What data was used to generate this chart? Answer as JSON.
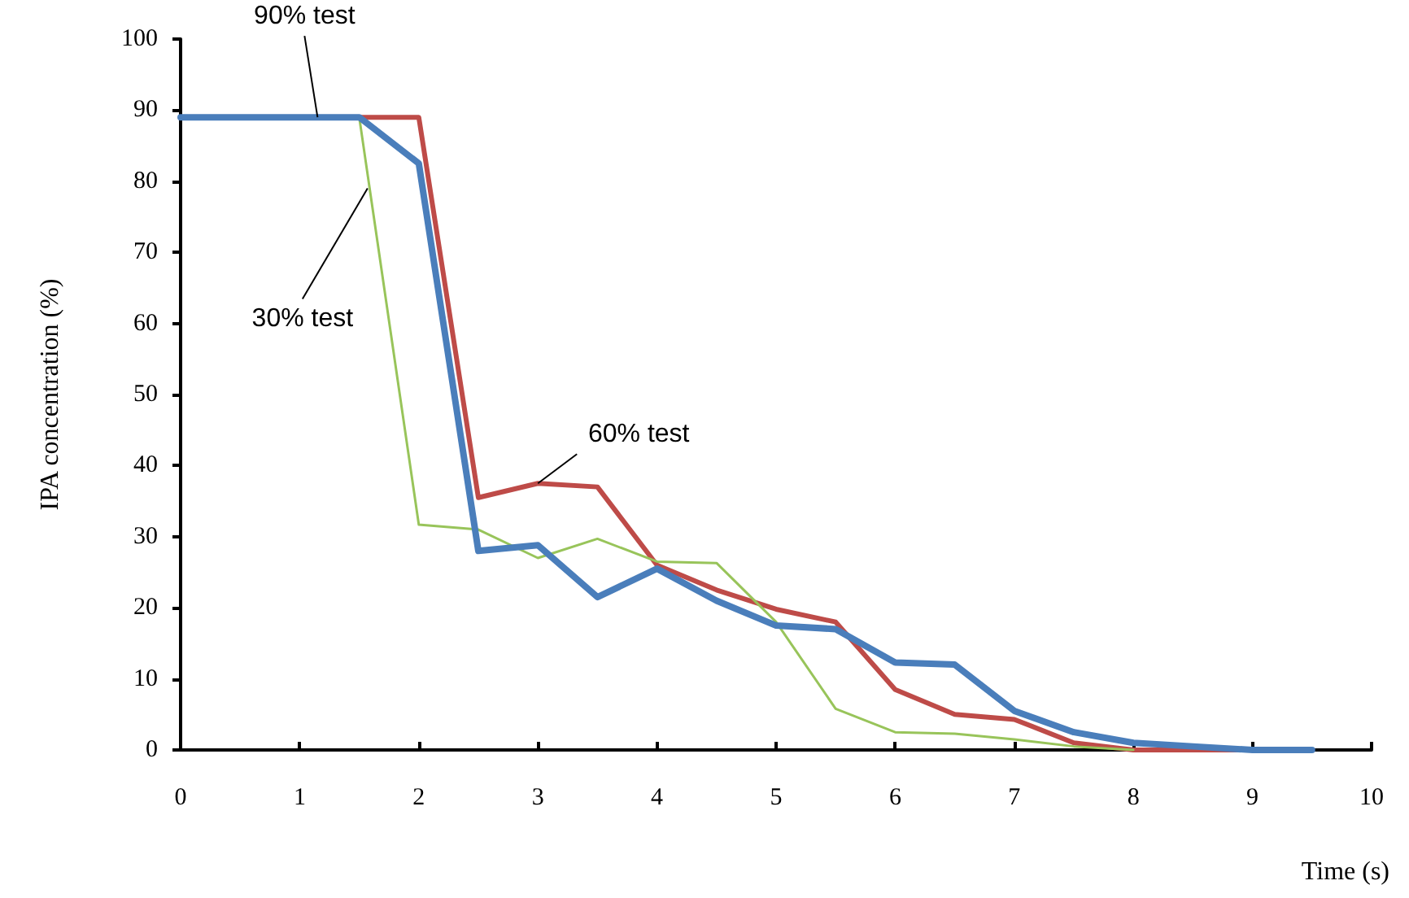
{
  "chart_data": {
    "type": "line",
    "xlabel": "Time (s)",
    "ylabel": "IPA concentration (%)",
    "x": [
      0,
      0.5,
      1,
      1.5,
      2,
      2.5,
      3,
      3.5,
      4,
      4.5,
      5,
      5.5,
      6,
      6.5,
      7,
      7.5,
      8,
      8.5,
      9,
      9.5
    ],
    "series": [
      {
        "name": "90% test",
        "color": "#4a7ebb",
        "values": [
          89,
          89,
          89,
          89,
          82.5,
          28,
          28.8,
          21.5,
          25.5,
          21,
          17.5,
          17,
          12.3,
          12,
          5.5,
          2.5,
          1,
          0.5,
          0,
          0
        ]
      },
      {
        "name": "30% test",
        "color": "#98c45a",
        "values": [
          null,
          null,
          null,
          89,
          31.7,
          31,
          27,
          29.7,
          26.5,
          26.3,
          18,
          5.8,
          2.5,
          2.3,
          1.5,
          0.5,
          0,
          null,
          null,
          null
        ]
      },
      {
        "name": "60% test",
        "color": "#be4b48",
        "values": [
          null,
          null,
          null,
          89,
          89,
          35.5,
          37.5,
          37,
          26,
          22.5,
          19.8,
          18,
          8.5,
          5,
          4.3,
          1,
          0,
          0,
          0,
          0
        ]
      }
    ],
    "xlim": [
      0,
      10
    ],
    "xticks": [
      0,
      1,
      2,
      3,
      4,
      5,
      6,
      7,
      8,
      9,
      10
    ],
    "ylim": [
      0,
      100
    ],
    "yticks": [
      0,
      10,
      20,
      30,
      40,
      50,
      60,
      70,
      80,
      90,
      100
    ],
    "grid": false,
    "legend": false,
    "marker": "none",
    "line_style": "solid"
  }
}
